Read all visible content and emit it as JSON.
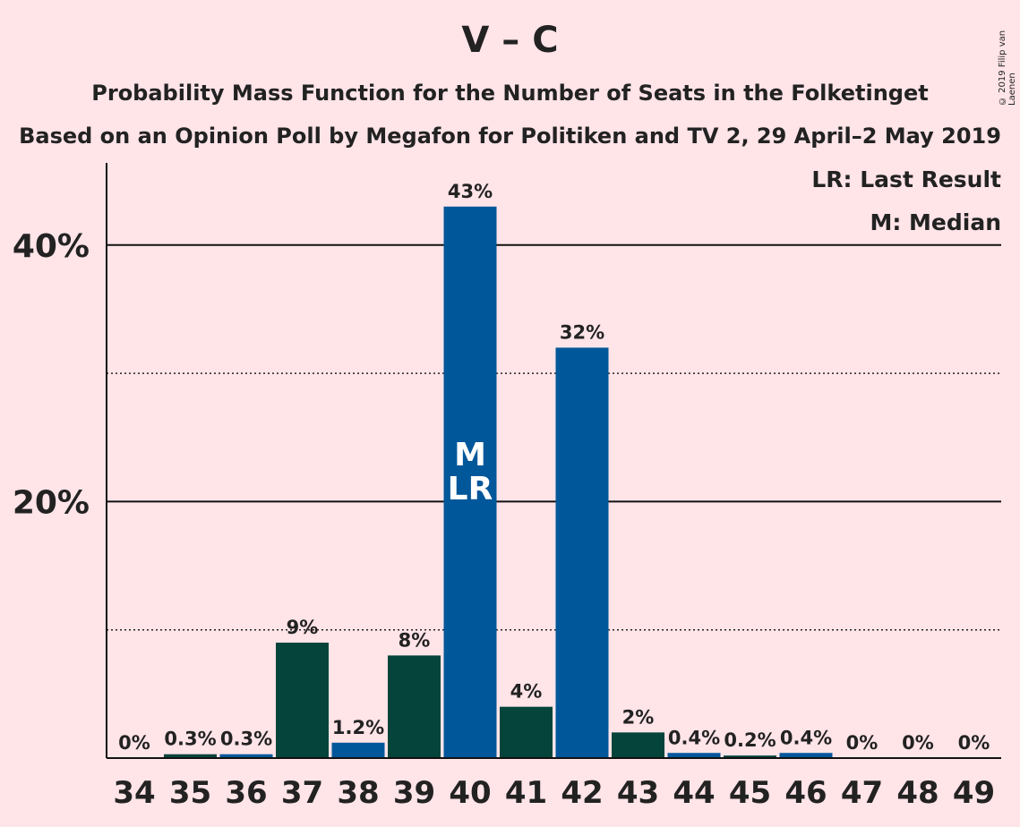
{
  "title": "V – C",
  "subtitle1": "Probability Mass Function for the Number of Seats in the Folketinget",
  "subtitle2": "Based on an Opinion Poll by Megafon for Politiken and TV 2, 29 April–2 May 2019",
  "copyright": "© 2019 Filip van Laenen",
  "legend": {
    "last_result": "LR: Last Result",
    "median": "M: Median"
  },
  "colors": {
    "background": "#FFE4E8",
    "blue": "#00579A",
    "green": "#05443A"
  },
  "chart_data": {
    "type": "bar",
    "categories": [
      "34",
      "35",
      "36",
      "37",
      "38",
      "39",
      "40",
      "41",
      "42",
      "43",
      "44",
      "45",
      "46",
      "47",
      "48",
      "49"
    ],
    "values": [
      0,
      0.3,
      0.3,
      9,
      1.2,
      8,
      43,
      4,
      32,
      2,
      0.4,
      0.2,
      0.4,
      0,
      0,
      0
    ],
    "labels": [
      "0%",
      "0.3%",
      "0.3%",
      "9%",
      "1.2%",
      "8%",
      "43%",
      "4%",
      "32%",
      "2%",
      "0.4%",
      "0.2%",
      "0.4%",
      "0%",
      "0%",
      "0%"
    ],
    "bar_colors": [
      "blue",
      "green",
      "blue",
      "green",
      "blue",
      "green",
      "blue",
      "green",
      "blue",
      "green",
      "blue",
      "green",
      "blue",
      "green",
      "blue",
      "green"
    ],
    "ylim": [
      0,
      46
    ],
    "yticks": [
      {
        "value": 20,
        "label": "20%"
      },
      {
        "value": 40,
        "label": "40%"
      }
    ],
    "dotted_gridlines": [
      10,
      30
    ],
    "markers": [
      {
        "category": "40",
        "lines": [
          "M",
          "LR"
        ]
      }
    ]
  }
}
